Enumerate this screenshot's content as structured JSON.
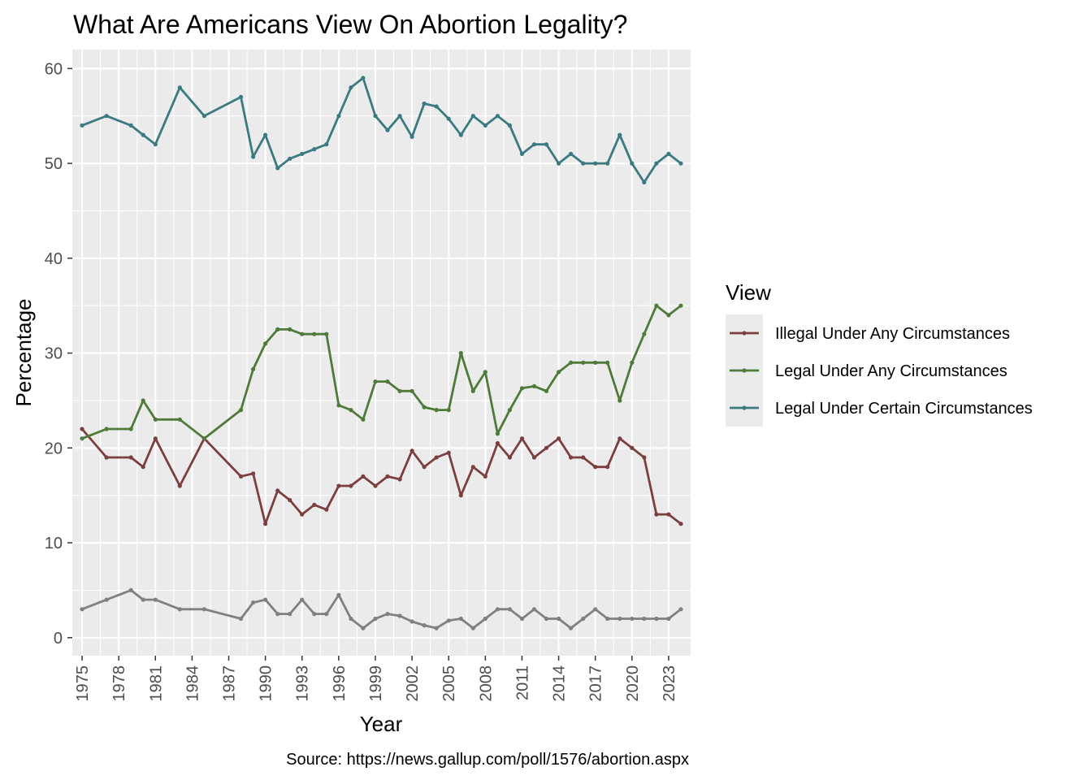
{
  "chart_data": {
    "type": "line",
    "title": "What Are Americans View On Abortion Legality?",
    "xlabel": "Year",
    "ylabel": "Percentage",
    "caption": "Source: https://news.gallup.com/poll/1576/abortion.aspx",
    "xlim": [
      1974.2,
      2024.8
    ],
    "ylim": [
      -1.9,
      62
    ],
    "x_ticks": [
      1975,
      1978,
      1981,
      1984,
      1987,
      1990,
      1993,
      1996,
      1999,
      2002,
      2005,
      2008,
      2011,
      2014,
      2017,
      2020,
      2023
    ],
    "y_ticks": [
      0,
      10,
      20,
      30,
      40,
      50,
      60
    ],
    "grid": true,
    "legend": {
      "title": "View",
      "position": "right"
    },
    "series": [
      {
        "name": "Illegal Under Any Circumstances",
        "color": "#7B3F3F",
        "points": [
          [
            1975,
            22
          ],
          [
            1977,
            19
          ],
          [
            1979,
            19
          ],
          [
            1980,
            18
          ],
          [
            1981,
            21
          ],
          [
            1983,
            16
          ],
          [
            1985,
            21
          ],
          [
            1988,
            17
          ],
          [
            1989,
            17.3
          ],
          [
            1990,
            12
          ],
          [
            1991,
            15.5
          ],
          [
            1992,
            14.5
          ],
          [
            1993,
            13
          ],
          [
            1994,
            14
          ],
          [
            1995,
            13.5
          ],
          [
            1996,
            16
          ],
          [
            1997,
            16
          ],
          [
            1998,
            17
          ],
          [
            1999,
            16
          ],
          [
            2000,
            17
          ],
          [
            2001,
            16.7
          ],
          [
            2002,
            19.7
          ],
          [
            2003,
            18
          ],
          [
            2004,
            19
          ],
          [
            2005,
            19.5
          ],
          [
            2006,
            15
          ],
          [
            2007,
            18
          ],
          [
            2008,
            17
          ],
          [
            2009,
            20.5
          ],
          [
            2010,
            19
          ],
          [
            2011,
            21
          ],
          [
            2012,
            19
          ],
          [
            2013,
            20
          ],
          [
            2014,
            21
          ],
          [
            2015,
            19
          ],
          [
            2016,
            19
          ],
          [
            2017,
            18
          ],
          [
            2018,
            18
          ],
          [
            2019,
            21
          ],
          [
            2020,
            20
          ],
          [
            2021,
            19
          ],
          [
            2022,
            13
          ],
          [
            2023,
            13
          ],
          [
            2024,
            12
          ]
        ]
      },
      {
        "name": "Legal Under Any Circumstances",
        "color": "#4F7A3A",
        "points": [
          [
            1975,
            21
          ],
          [
            1977,
            22
          ],
          [
            1979,
            22
          ],
          [
            1980,
            25
          ],
          [
            1981,
            23
          ],
          [
            1983,
            23
          ],
          [
            1985,
            21
          ],
          [
            1988,
            24
          ],
          [
            1989,
            28.3
          ],
          [
            1990,
            31
          ],
          [
            1991,
            32.5
          ],
          [
            1992,
            32.5
          ],
          [
            1993,
            32
          ],
          [
            1994,
            32
          ],
          [
            1995,
            32
          ],
          [
            1996,
            24.5
          ],
          [
            1997,
            24
          ],
          [
            1998,
            23
          ],
          [
            1999,
            27
          ],
          [
            2000,
            27
          ],
          [
            2001,
            26
          ],
          [
            2002,
            26
          ],
          [
            2003,
            24.3
          ],
          [
            2004,
            24
          ],
          [
            2005,
            24
          ],
          [
            2006,
            30
          ],
          [
            2007,
            26
          ],
          [
            2008,
            28
          ],
          [
            2009,
            21.5
          ],
          [
            2010,
            24
          ],
          [
            2011,
            26.3
          ],
          [
            2012,
            26.5
          ],
          [
            2013,
            26
          ],
          [
            2014,
            28
          ],
          [
            2015,
            29
          ],
          [
            2016,
            29
          ],
          [
            2017,
            29
          ],
          [
            2018,
            29
          ],
          [
            2019,
            25
          ],
          [
            2020,
            29
          ],
          [
            2021,
            32
          ],
          [
            2022,
            35
          ],
          [
            2023,
            34
          ],
          [
            2024,
            35
          ]
        ]
      },
      {
        "name": "Legal Under Certain Circumstances",
        "color": "#3A7A80",
        "points": [
          [
            1975,
            54
          ],
          [
            1977,
            55
          ],
          [
            1979,
            54
          ],
          [
            1980,
            53
          ],
          [
            1981,
            52
          ],
          [
            1983,
            58
          ],
          [
            1985,
            55
          ],
          [
            1988,
            57
          ],
          [
            1989,
            50.7
          ],
          [
            1990,
            53
          ],
          [
            1991,
            49.5
          ],
          [
            1992,
            50.5
          ],
          [
            1993,
            51
          ],
          [
            1994,
            51.5
          ],
          [
            1995,
            52
          ],
          [
            1996,
            55
          ],
          [
            1997,
            58
          ],
          [
            1998,
            59
          ],
          [
            1999,
            55
          ],
          [
            2000,
            53.5
          ],
          [
            2001,
            55
          ],
          [
            2002,
            52.8
          ],
          [
            2003,
            56.3
          ],
          [
            2004,
            56
          ],
          [
            2005,
            54.7
          ],
          [
            2006,
            53
          ],
          [
            2007,
            55
          ],
          [
            2008,
            54
          ],
          [
            2009,
            55
          ],
          [
            2010,
            54
          ],
          [
            2011,
            51
          ],
          [
            2012,
            52
          ],
          [
            2013,
            52
          ],
          [
            2014,
            50
          ],
          [
            2015,
            51
          ],
          [
            2016,
            50
          ],
          [
            2017,
            50
          ],
          [
            2018,
            50
          ],
          [
            2019,
            53
          ],
          [
            2020,
            50
          ],
          [
            2021,
            48
          ],
          [
            2022,
            50
          ],
          [
            2023,
            51
          ],
          [
            2024,
            50
          ]
        ]
      },
      {
        "color": "#808080",
        "legend": false,
        "points": [
          [
            1975,
            3
          ],
          [
            1977,
            4
          ],
          [
            1979,
            5
          ],
          [
            1980,
            4
          ],
          [
            1981,
            4
          ],
          [
            1983,
            3
          ],
          [
            1985,
            3
          ],
          [
            1988,
            2
          ],
          [
            1989,
            3.7
          ],
          [
            1990,
            4
          ],
          [
            1991,
            2.5
          ],
          [
            1992,
            2.5
          ],
          [
            1993,
            4
          ],
          [
            1994,
            2.5
          ],
          [
            1995,
            2.5
          ],
          [
            1996,
            4.5
          ],
          [
            1997,
            2
          ],
          [
            1998,
            1
          ],
          [
            1999,
            2
          ],
          [
            2000,
            2.5
          ],
          [
            2001,
            2.3
          ],
          [
            2002,
            1.7
          ],
          [
            2003,
            1.3
          ],
          [
            2004,
            1
          ],
          [
            2005,
            1.8
          ],
          [
            2006,
            2
          ],
          [
            2007,
            1
          ],
          [
            2008,
            2
          ],
          [
            2009,
            3
          ],
          [
            2010,
            3
          ],
          [
            2011,
            2
          ],
          [
            2012,
            3
          ],
          [
            2013,
            2
          ],
          [
            2014,
            2
          ],
          [
            2015,
            1
          ],
          [
            2016,
            2
          ],
          [
            2017,
            3
          ],
          [
            2018,
            2
          ],
          [
            2019,
            2
          ],
          [
            2020,
            2
          ],
          [
            2021,
            2
          ],
          [
            2022,
            2
          ],
          [
            2023,
            2
          ],
          [
            2024,
            3
          ]
        ]
      }
    ]
  }
}
